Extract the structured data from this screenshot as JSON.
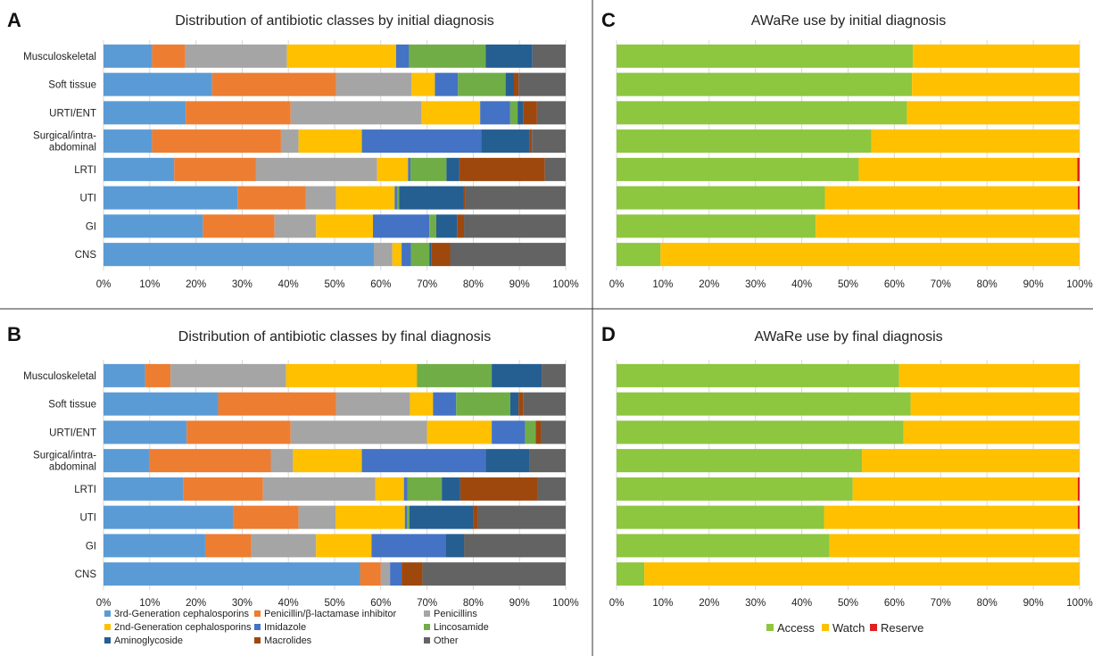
{
  "colors": {
    "third_gen_ceph": "#5b9bd5",
    "pen_bli": "#ed7d31",
    "penicillins": "#a5a5a5",
    "second_gen_ceph": "#ffc000",
    "imidazole": "#4472c4",
    "lincosamide": "#70ad47",
    "aminoglycoside": "#255e91",
    "macrolides": "#9e480e",
    "other": "#636363",
    "access": "#8dc63f",
    "watch": "#ffc000",
    "reserve": "#e02020"
  },
  "legend_classes": [
    {
      "label": "3rd-Generation cephalosporins",
      "color_key": "third_gen_ceph"
    },
    {
      "label": "Penicillin/β-lactamase inhibitor",
      "color_key": "pen_bli"
    },
    {
      "label": "Penicillins",
      "color_key": "penicillins"
    },
    {
      "label": "2nd-Generation cephalosporins",
      "color_key": "second_gen_ceph"
    },
    {
      "label": "Imidazole",
      "color_key": "imidazole"
    },
    {
      "label": "Lincosamide",
      "color_key": "lincosamide"
    },
    {
      "label": "Aminoglycoside",
      "color_key": "aminoglycoside"
    },
    {
      "label": "Macrolides",
      "color_key": "macrolides"
    },
    {
      "label": "Other",
      "color_key": "other"
    }
  ],
  "legend_aware": [
    {
      "label": "Access",
      "color_key": "access"
    },
    {
      "label": "Watch",
      "color_key": "watch"
    },
    {
      "label": "Reserve",
      "color_key": "reserve"
    }
  ],
  "chart_data": [
    {
      "panel": "A",
      "type": "bar",
      "stacked": true,
      "orientation": "horizontal",
      "title": "Distribution of antibiotic classes by initial diagnosis",
      "categories": [
        "Musculoskeletal",
        "Soft tissue",
        "URTI/ENT",
        "Surgical/intra-abdominal",
        "LRTI",
        "UTI",
        "GI",
        "CNS"
      ],
      "x_ticks": [
        "0%",
        "10%",
        "20%",
        "30%",
        "40%",
        "50%",
        "60%",
        "70%",
        "80%",
        "90%",
        "100%"
      ],
      "xlim": [
        0,
        100
      ],
      "series": [
        {
          "name": "3rd-Generation cephalosporins",
          "color_key": "third_gen_ceph",
          "values": [
            10.5,
            23.5,
            17.8,
            10.5,
            15.3,
            29.0,
            21.5,
            58.5
          ]
        },
        {
          "name": "Penicillin/β-lactamase inhibitor",
          "color_key": "pen_bli",
          "values": [
            7.2,
            26.8,
            22.7,
            27.9,
            17.7,
            14.8,
            15.5,
            0
          ]
        },
        {
          "name": "Penicillins",
          "color_key": "penicillins",
          "values": [
            22.0,
            16.3,
            28.3,
            3.8,
            26.2,
            6.5,
            9.0,
            4.0
          ]
        },
        {
          "name": "2nd-Generation cephalosporins",
          "color_key": "second_gen_ceph",
          "values": [
            23.6,
            5.1,
            12.7,
            13.7,
            6.7,
            12.7,
            12.3,
            2.0
          ]
        },
        {
          "name": "Imidazole",
          "color_key": "imidazole",
          "values": [
            2.8,
            5.0,
            6.5,
            25.8,
            0.5,
            0.5,
            12.2,
            2.0
          ]
        },
        {
          "name": "Lincosamide",
          "color_key": "lincosamide",
          "values": [
            16.6,
            10.3,
            1.6,
            0,
            7.8,
            0.5,
            1.5,
            4.0
          ]
        },
        {
          "name": "Aminoglycoside",
          "color_key": "aminoglycoside",
          "values": [
            10.1,
            1.8,
            1.2,
            10.5,
            2.8,
            13.8,
            4.5,
            0.5
          ]
        },
        {
          "name": "Macrolides",
          "color_key": "macrolides",
          "values": [
            0,
            1.0,
            3.0,
            0.5,
            18.5,
            0.5,
            1.5,
            4.0
          ]
        },
        {
          "name": "Other",
          "color_key": "other",
          "values": [
            7.2,
            10.2,
            6.2,
            7.3,
            4.5,
            21.7,
            22.0,
            25.0
          ]
        }
      ]
    },
    {
      "panel": "B",
      "type": "bar",
      "stacked": true,
      "orientation": "horizontal",
      "title": "Distribution of antibiotic classes by final diagnosis",
      "categories": [
        "Musculoskeletal",
        "Soft tissue",
        "URTI/ENT",
        "Surgical/intra-abdominal",
        "LRTI",
        "UTI",
        "GI",
        "CNS"
      ],
      "x_ticks": [
        "0%",
        "10%",
        "20%",
        "30%",
        "40%",
        "50%",
        "60%",
        "70%",
        "80%",
        "90%",
        "100%"
      ],
      "xlim": [
        0,
        100
      ],
      "series": [
        {
          "name": "3rd-Generation cephalosporins",
          "color_key": "third_gen_ceph",
          "values": [
            9.0,
            24.8,
            18.0,
            10.0,
            17.2,
            28.0,
            22.0,
            55.5
          ]
        },
        {
          "name": "Penicillin/β-lactamase inhibitor",
          "color_key": "pen_bli",
          "values": [
            5.5,
            25.5,
            22.5,
            26.2,
            17.3,
            14.2,
            10.0,
            4.5
          ]
        },
        {
          "name": "Penicillins",
          "color_key": "penicillins",
          "values": [
            25.0,
            16.0,
            29.5,
            4.8,
            24.3,
            8.0,
            14.0,
            2.0
          ]
        },
        {
          "name": "2nd-Generation cephalosporins",
          "color_key": "second_gen_ceph",
          "values": [
            28.3,
            5.0,
            14.0,
            14.9,
            6.2,
            15.0,
            12.0,
            0
          ]
        },
        {
          "name": "Imidazole",
          "color_key": "imidazole",
          "values": [
            0,
            5.0,
            7.2,
            26.8,
            0.8,
            0.5,
            16.0,
            2.5
          ]
        },
        {
          "name": "Lincosamide",
          "color_key": "lincosamide",
          "values": [
            16.2,
            11.7,
            2.3,
            0,
            7.4,
            0.5,
            0,
            0
          ]
        },
        {
          "name": "Aminoglycoside",
          "color_key": "aminoglycoside",
          "values": [
            10.8,
            1.8,
            0,
            9.5,
            4.0,
            13.8,
            4.0,
            0
          ]
        },
        {
          "name": "Macrolides",
          "color_key": "macrolides",
          "values": [
            0,
            1.0,
            1.2,
            0,
            16.8,
            1.0,
            0,
            4.5
          ]
        },
        {
          "name": "Other",
          "color_key": "other",
          "values": [
            5.2,
            9.2,
            5.3,
            7.8,
            6.0,
            19.0,
            22.0,
            31.0
          ]
        }
      ]
    },
    {
      "panel": "C",
      "type": "bar",
      "stacked": true,
      "orientation": "horizontal",
      "title": "AWaRe use by initial diagnosis",
      "categories": [
        "Musculoskeletal",
        "Soft tissue",
        "URTI/ENT",
        "Surgical/intra-abdominal",
        "LRTI",
        "UTI",
        "GI",
        "CNS"
      ],
      "x_ticks": [
        "0%",
        "10%",
        "20%",
        "30%",
        "40%",
        "50%",
        "60%",
        "70%",
        "80%",
        "90%",
        "100%"
      ],
      "xlim": [
        0,
        100
      ],
      "series": [
        {
          "name": "Access",
          "color_key": "access",
          "values": [
            64.0,
            63.8,
            62.7,
            55.0,
            52.3,
            45.0,
            43.0,
            9.5
          ]
        },
        {
          "name": "Watch",
          "color_key": "watch",
          "values": [
            36.0,
            36.2,
            37.3,
            45.0,
            47.2,
            54.6,
            57.0,
            90.5
          ]
        },
        {
          "name": "Reserve",
          "color_key": "reserve",
          "values": [
            0,
            0,
            0,
            0,
            0.5,
            0.4,
            0,
            0
          ]
        }
      ]
    },
    {
      "panel": "D",
      "type": "bar",
      "stacked": true,
      "orientation": "horizontal",
      "title": "AWaRe use by final diagnosis",
      "categories": [
        "Musculoskeletal",
        "Soft tissue",
        "URTI/ENT",
        "Surgical/intra-abdominal",
        "LRTI",
        "UTI",
        "GI",
        "CNS"
      ],
      "x_ticks": [
        "0%",
        "10%",
        "20%",
        "30%",
        "40%",
        "50%",
        "60%",
        "70%",
        "80%",
        "90%",
        "100%"
      ],
      "xlim": [
        0,
        100
      ],
      "series": [
        {
          "name": "Access",
          "color_key": "access",
          "values": [
            61.0,
            63.5,
            62.0,
            53.0,
            51.0,
            44.8,
            46.0,
            6.0
          ]
        },
        {
          "name": "Watch",
          "color_key": "watch",
          "values": [
            39.0,
            36.5,
            38.0,
            47.0,
            48.6,
            54.8,
            54.0,
            94.0
          ]
        },
        {
          "name": "Reserve",
          "color_key": "reserve",
          "values": [
            0,
            0,
            0,
            0,
            0.4,
            0.4,
            0,
            0
          ]
        }
      ]
    }
  ]
}
